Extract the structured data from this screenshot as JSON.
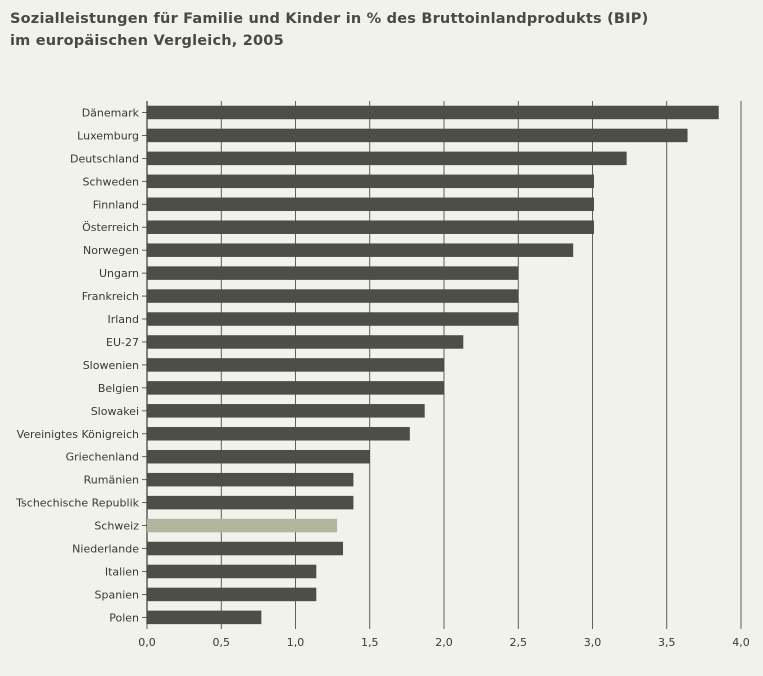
{
  "chart_data": {
    "type": "bar",
    "orientation": "horizontal",
    "title_lines": [
      "Sozialleistungen für Familie und Kinder in % des Bruttoinlandprodukts (BIP)",
      "im europäischen Vergleich, 2005"
    ],
    "categories": [
      "Dänemark",
      "Luxemburg",
      "Deutschland",
      "Schweden",
      "Finnland",
      "Österreich",
      "Norwegen",
      "Ungarn",
      "Frankreich",
      "Irland",
      "EU-27",
      "Slowenien",
      "Belgien",
      "Slowakei",
      "Vereinigtes Königreich",
      "Griechenland",
      "Rumänien",
      "Tschechische Republik",
      "Schweiz",
      "Niederlande",
      "Italien",
      "Spanien",
      "Polen"
    ],
    "values": [
      3.85,
      3.64,
      3.23,
      3.01,
      3.01,
      3.01,
      2.87,
      2.5,
      2.5,
      2.5,
      2.13,
      2.0,
      2.0,
      1.87,
      1.77,
      1.5,
      1.39,
      1.39,
      1.28,
      1.32,
      1.14,
      1.14,
      0.77
    ],
    "highlight_category": "Schweiz",
    "xlim": [
      0,
      4.0
    ],
    "x_ticks": [
      0,
      0.5,
      1.0,
      1.5,
      2.0,
      2.5,
      3.0,
      3.5,
      4.0
    ],
    "x_tick_labels": [
      "0,0",
      "0,5",
      "1,0",
      "1,5",
      "2,0",
      "2,5",
      "3,0",
      "3,5",
      "4,0"
    ],
    "grid": "vertical",
    "colors": {
      "bar": "#4d4e46",
      "highlight": "#b3b59c",
      "grid": "#3a3a35",
      "background": "#f2f2ec"
    }
  }
}
